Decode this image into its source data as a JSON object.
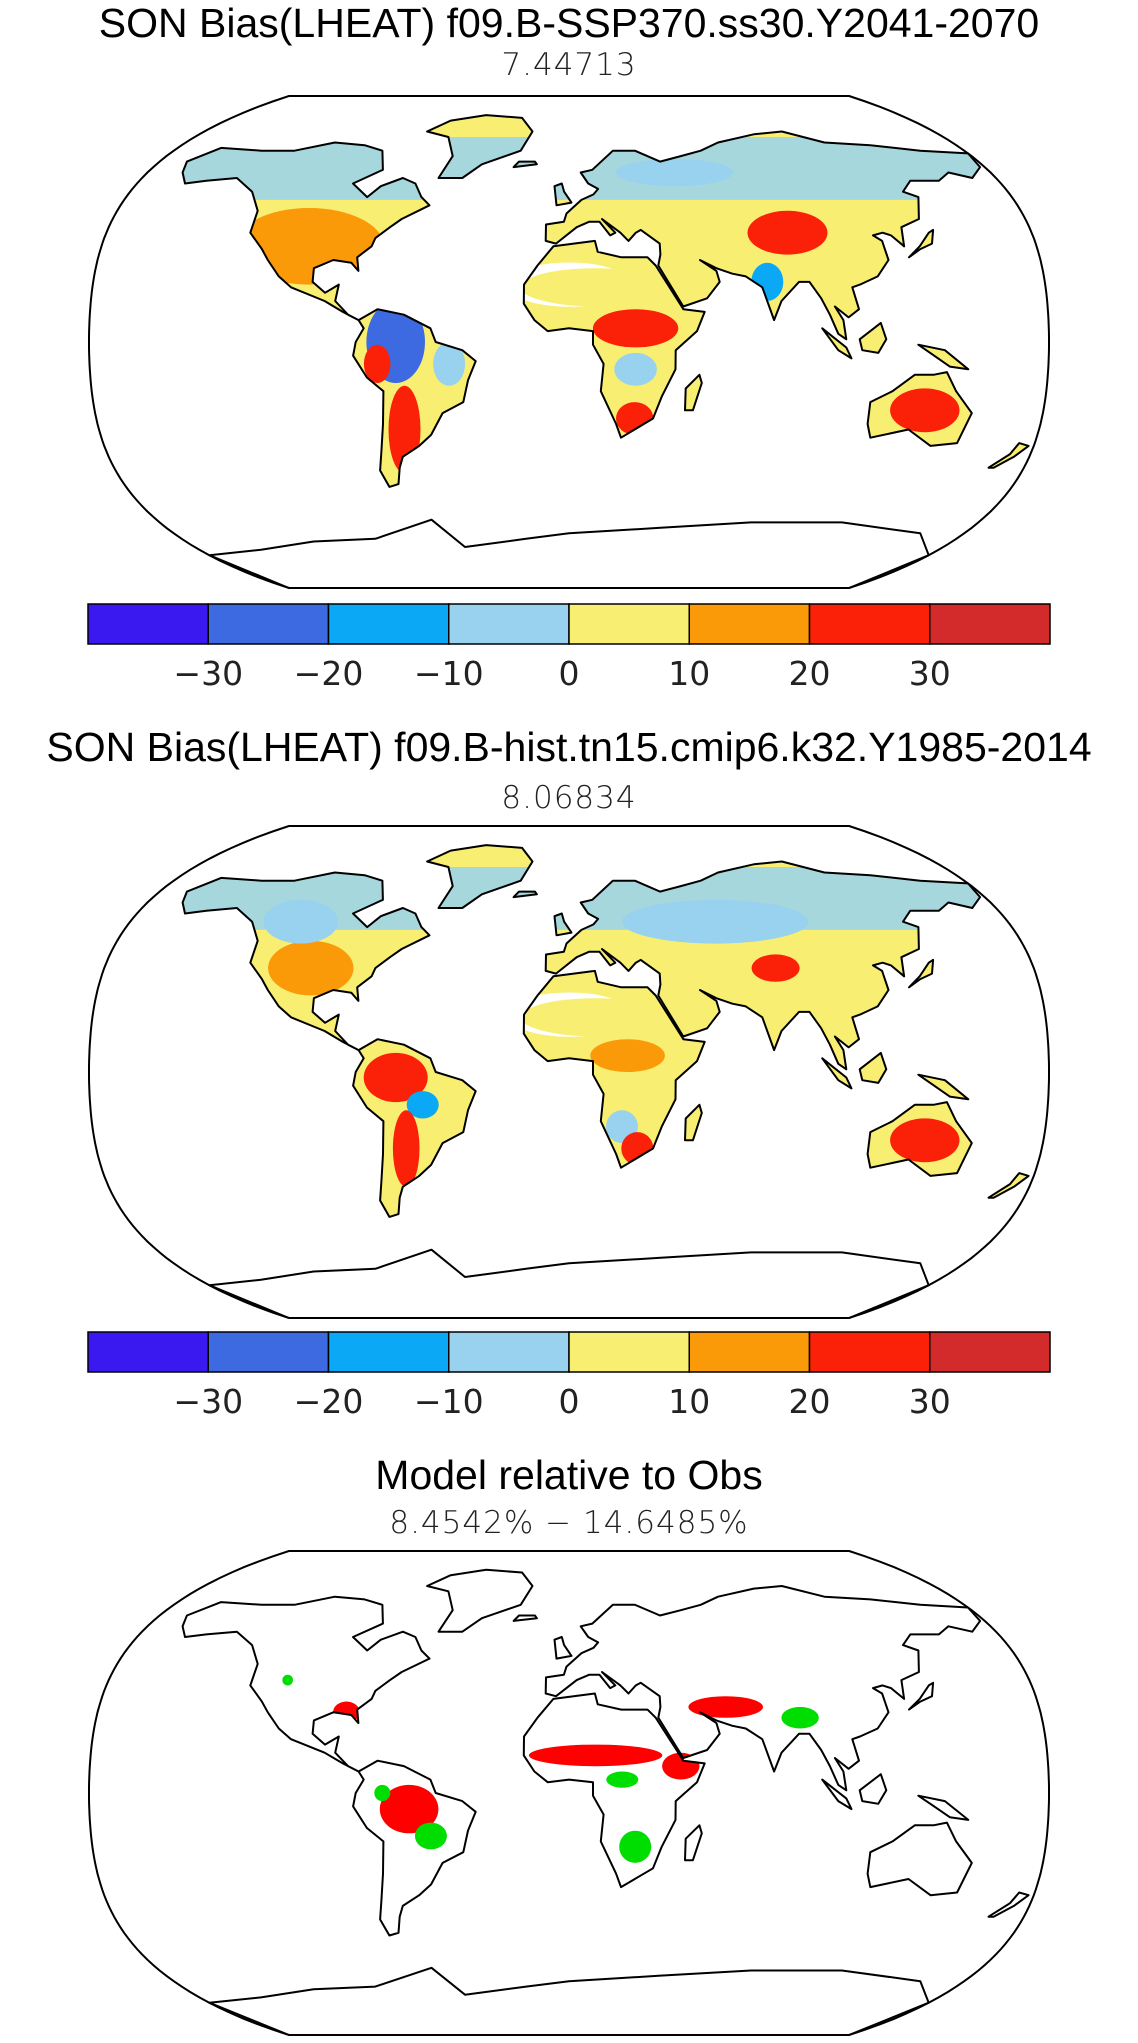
{
  "panels": [
    {
      "title": "SON Bias(LHEAT) f09.B-SSP370.ss30.Y2041-2070",
      "subtitle": "7.44713",
      "bias": [
        {
          "lon": -100,
          "lat": 35,
          "rx": 28,
          "ry": 14,
          "level": 5
        },
        {
          "lon": -65,
          "lat": 0,
          "rx": 11,
          "ry": 15,
          "level": 1
        },
        {
          "lon": -72,
          "lat": -8,
          "rx": 5,
          "ry": 7,
          "level": 6
        },
        {
          "lon": -63,
          "lat": -32,
          "rx": 6,
          "ry": 16,
          "level": 6
        },
        {
          "lon": -45,
          "lat": -8,
          "rx": 6,
          "ry": 8,
          "level": 3
        },
        {
          "lon": 10,
          "lat": 20,
          "rx": 28,
          "ry": 7,
          "level": 4
        },
        {
          "lon": 25,
          "lat": 5,
          "rx": 16,
          "ry": 7,
          "level": 6
        },
        {
          "lon": 25,
          "lat": -10,
          "rx": 8,
          "ry": 6,
          "level": 3
        },
        {
          "lon": 25,
          "lat": -28,
          "rx": 7,
          "ry": 6,
          "level": 6
        },
        {
          "lon": 85,
          "lat": 40,
          "rx": 15,
          "ry": 8,
          "level": 6
        },
        {
          "lon": 75,
          "lat": 22,
          "rx": 6,
          "ry": 7,
          "level": 2
        },
        {
          "lon": 45,
          "lat": 62,
          "rx": 22,
          "ry": 5,
          "level": 3
        },
        {
          "lon": 135,
          "lat": -25,
          "rx": 13,
          "ry": 8,
          "level": 6
        }
      ],
      "colorbar": true
    },
    {
      "title": "SON Bias(LHEAT) f09.B-hist.tn15.cmip6.k32.Y1985-2014",
      "subtitle": "8.06834",
      "bias": [
        {
          "lon": -100,
          "lat": 38,
          "rx": 16,
          "ry": 10,
          "level": 5
        },
        {
          "lon": -110,
          "lat": 55,
          "rx": 14,
          "ry": 8,
          "level": 3
        },
        {
          "lon": -65,
          "lat": -2,
          "rx": 12,
          "ry": 9,
          "level": 6
        },
        {
          "lon": -55,
          "lat": -12,
          "rx": 6,
          "ry": 5,
          "level": 2
        },
        {
          "lon": -62,
          "lat": -28,
          "rx": 5,
          "ry": 14,
          "level": 6
        },
        {
          "lon": 10,
          "lat": 20,
          "rx": 28,
          "ry": 7,
          "level": 4
        },
        {
          "lon": 22,
          "lat": 6,
          "rx": 14,
          "ry": 6,
          "level": 5
        },
        {
          "lon": 20,
          "lat": -20,
          "rx": 6,
          "ry": 6,
          "level": 3
        },
        {
          "lon": 26,
          "lat": -28,
          "rx": 6,
          "ry": 6,
          "level": 6
        },
        {
          "lon": 60,
          "lat": 55,
          "rx": 35,
          "ry": 8,
          "level": 3
        },
        {
          "lon": 80,
          "lat": 38,
          "rx": 9,
          "ry": 5,
          "level": 6
        },
        {
          "lon": 135,
          "lat": -25,
          "rx": 13,
          "ry": 8,
          "level": 6
        }
      ],
      "colorbar": true
    },
    {
      "title": "Model relative to Obs",
      "subtitle": "8.4542% − 14.6485%",
      "mask": [
        {
          "lon": -60,
          "lat": -6,
          "rx": 11,
          "ry": 9,
          "color": "#ff0000"
        },
        {
          "lon": -52,
          "lat": -16,
          "rx": 6,
          "ry": 5,
          "color": "#00dd00"
        },
        {
          "lon": -70,
          "lat": 0,
          "rx": 3,
          "ry": 3,
          "color": "#00dd00"
        },
        {
          "lon": 10,
          "lat": 14,
          "rx": 25,
          "ry": 4,
          "color": "#ff0000"
        },
        {
          "lon": 42,
          "lat": 10,
          "rx": 7,
          "ry": 5,
          "color": "#ff0000"
        },
        {
          "lon": 25,
          "lat": -20,
          "rx": 6,
          "ry": 6,
          "color": "#00dd00"
        },
        {
          "lon": 20,
          "lat": 5,
          "rx": 6,
          "ry": 3,
          "color": "#00dd00"
        },
        {
          "lon": 60,
          "lat": 32,
          "rx": 14,
          "ry": 4,
          "color": "#ff0000"
        },
        {
          "lon": 88,
          "lat": 28,
          "rx": 7,
          "ry": 4,
          "color": "#00dd00"
        },
        {
          "lon": -85,
          "lat": 30,
          "rx": 5,
          "ry": 4,
          "color": "#ff0000"
        },
        {
          "lon": -110,
          "lat": 42,
          "rx": 2,
          "ry": 2,
          "color": "#00dd00"
        }
      ],
      "colorbar": false
    }
  ],
  "colorbar": {
    "colors": [
      "#3a18f0",
      "#3d6ae0",
      "#0aa8f5",
      "#98d2ef",
      "#f8ee72",
      "#fb9a08",
      "#fa2108",
      "#d32a2b"
    ],
    "labels": [
      "−30",
      "−20",
      "−10",
      "0",
      "10",
      "20",
      "30"
    ]
  }
}
